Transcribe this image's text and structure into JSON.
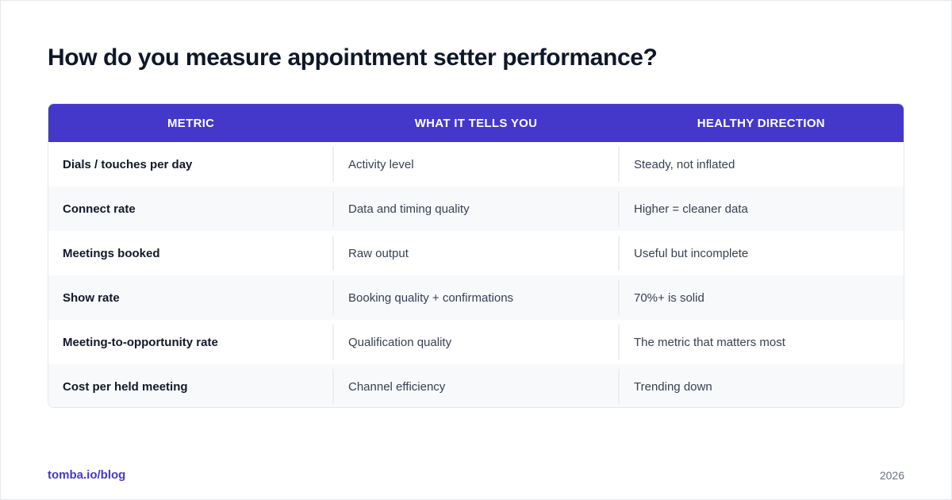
{
  "title": "How do you measure appointment setter performance?",
  "table": {
    "headers": [
      "METRIC",
      "WHAT IT TELLS YOU",
      "HEALTHY DIRECTION"
    ],
    "rows": [
      [
        "Dials / touches per day",
        "Activity level",
        "Steady, not inflated"
      ],
      [
        "Connect rate",
        "Data and timing quality",
        "Higher = cleaner data"
      ],
      [
        "Meetings booked",
        "Raw output",
        "Useful but incomplete"
      ],
      [
        "Show rate",
        "Booking quality + confirmations",
        "70%+ is solid"
      ],
      [
        "Meeting-to-opportunity rate",
        "Qualification quality",
        "The metric that matters most"
      ],
      [
        "Cost per held meeting",
        "Channel efficiency",
        "Trending down"
      ]
    ]
  },
  "footer": {
    "link": "tomba.io/blog",
    "year": "2026"
  },
  "colors": {
    "header_bg": "#4338ca",
    "accent": "#4338ca",
    "row_alt_bg": "#f8f9fb",
    "title": "#0f172a"
  }
}
